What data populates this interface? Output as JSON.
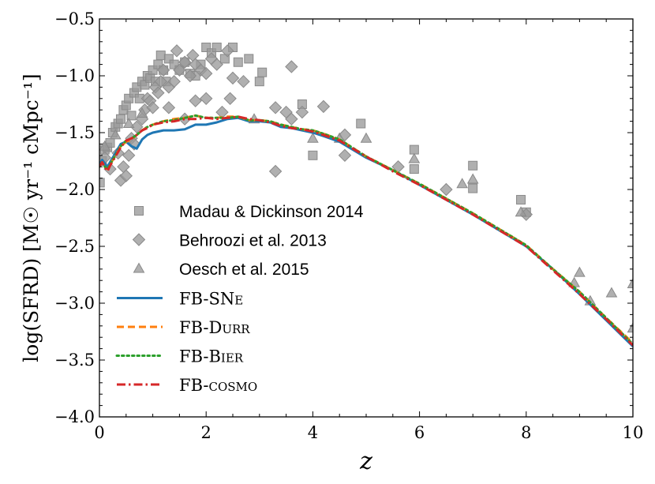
{
  "chart_data": {
    "type": "scatter",
    "xlabel": "z",
    "ylabel": "log(SFRD) [M☉ yr⁻¹ cMpc⁻¹]",
    "xlim": [
      0,
      10
    ],
    "ylim": [
      -4.0,
      -0.5
    ],
    "x_ticks": [
      0,
      2,
      4,
      6,
      8,
      10
    ],
    "y_ticks": [
      -4.0,
      -3.5,
      -3.0,
      -2.5,
      -2.0,
      -1.5,
      -1.0,
      -0.5
    ],
    "x_tick_labels": [
      "0",
      "2",
      "4",
      "6",
      "8",
      "10"
    ],
    "y_tick_labels": [
      "−4.0",
      "−3.5",
      "−3.0",
      "−2.5",
      "−2.0",
      "−1.5",
      "−1.0",
      "−0.5"
    ],
    "legend_position": "lower-left",
    "grid": false,
    "observations": [
      {
        "name": "Madau & Dickinson 2014",
        "marker": "square",
        "color": "#9a9a9a",
        "points": [
          [
            0.01,
            -1.94
          ],
          [
            0.05,
            -1.75
          ],
          [
            0.1,
            -1.65
          ],
          [
            0.15,
            -1.63
          ],
          [
            0.2,
            -1.59
          ],
          [
            0.25,
            -1.5
          ],
          [
            0.3,
            -1.45
          ],
          [
            0.35,
            -1.42
          ],
          [
            0.4,
            -1.38
          ],
          [
            0.45,
            -1.3
          ],
          [
            0.5,
            -1.26
          ],
          [
            0.55,
            -1.2
          ],
          [
            0.6,
            -1.35
          ],
          [
            0.65,
            -1.15
          ],
          [
            0.7,
            -1.1
          ],
          [
            0.75,
            -1.2
          ],
          [
            0.8,
            -1.05
          ],
          [
            0.85,
            -1.08
          ],
          [
            0.9,
            -1.0
          ],
          [
            0.95,
            -1.02
          ],
          [
            1.0,
            -0.95
          ],
          [
            1.05,
            -1.05
          ],
          [
            1.1,
            -0.9
          ],
          [
            1.15,
            -0.82
          ],
          [
            1.2,
            -0.95
          ],
          [
            1.25,
            -1.05
          ],
          [
            1.3,
            -0.85
          ],
          [
            1.4,
            -0.9
          ],
          [
            1.5,
            -0.95
          ],
          [
            1.6,
            -0.88
          ],
          [
            1.7,
            -0.98
          ],
          [
            1.8,
            -1.0
          ],
          [
            1.9,
            -0.9
          ],
          [
            2.0,
            -0.75
          ],
          [
            2.1,
            -0.8
          ],
          [
            2.2,
            -0.75
          ],
          [
            2.35,
            -0.85
          ],
          [
            2.5,
            -0.75
          ],
          [
            2.6,
            -0.88
          ],
          [
            2.8,
            -0.85
          ],
          [
            3.0,
            -1.05
          ],
          [
            3.05,
            -0.97
          ],
          [
            3.8,
            -1.25
          ],
          [
            4.0,
            -1.7
          ],
          [
            4.9,
            -1.42
          ],
          [
            5.9,
            -1.65
          ],
          [
            5.9,
            -1.82
          ],
          [
            7.0,
            -1.79
          ],
          [
            7.0,
            -1.99
          ],
          [
            7.9,
            -2.09
          ],
          [
            8.0,
            -2.2
          ]
        ]
      },
      {
        "name": "Behroozi et al. 2013",
        "marker": "diamond",
        "color": "#9a9a9a",
        "points": [
          [
            0.1,
            -1.72
          ],
          [
            0.2,
            -1.82
          ],
          [
            0.35,
            -1.68
          ],
          [
            0.4,
            -1.92
          ],
          [
            0.45,
            -1.8
          ],
          [
            0.5,
            -1.88
          ],
          [
            0.55,
            -1.7
          ],
          [
            0.6,
            -1.55
          ],
          [
            0.65,
            -1.6
          ],
          [
            0.7,
            -1.45
          ],
          [
            0.8,
            -1.38
          ],
          [
            0.85,
            -1.3
          ],
          [
            0.9,
            -1.2
          ],
          [
            0.95,
            -1.22
          ],
          [
            1.0,
            -1.28
          ],
          [
            1.05,
            -1.1
          ],
          [
            1.1,
            -1.15
          ],
          [
            1.15,
            -1.05
          ],
          [
            1.2,
            -0.95
          ],
          [
            1.3,
            -1.1
          ],
          [
            1.4,
            -1.05
          ],
          [
            1.45,
            -0.78
          ],
          [
            1.5,
            -0.95
          ],
          [
            1.6,
            -0.88
          ],
          [
            1.7,
            -1.0
          ],
          [
            1.75,
            -0.82
          ],
          [
            1.8,
            -0.9
          ],
          [
            1.9,
            -0.95
          ],
          [
            2.0,
            -0.98
          ],
          [
            2.1,
            -0.85
          ],
          [
            2.2,
            -0.9
          ],
          [
            2.4,
            -0.78
          ],
          [
            2.5,
            -1.02
          ],
          [
            2.7,
            -1.05
          ],
          [
            1.3,
            -1.28
          ],
          [
            1.6,
            -1.38
          ],
          [
            1.8,
            -1.22
          ],
          [
            2.0,
            -1.2
          ],
          [
            2.3,
            -1.32
          ],
          [
            2.45,
            -1.2
          ],
          [
            3.3,
            -1.28
          ],
          [
            3.5,
            -1.32
          ],
          [
            3.6,
            -0.92
          ],
          [
            3.8,
            -1.32
          ],
          [
            4.2,
            -1.27
          ],
          [
            3.3,
            -1.84
          ],
          [
            3.6,
            -1.38
          ],
          [
            4.6,
            -1.52
          ],
          [
            4.6,
            -1.7
          ],
          [
            5.6,
            -1.8
          ],
          [
            6.5,
            -2.0
          ],
          [
            8.0,
            -2.22
          ]
        ]
      },
      {
        "name": "Oesch et al. 2015",
        "marker": "triangle",
        "color": "#9a9a9a",
        "points": [
          [
            0.1,
            -1.62
          ],
          [
            0.3,
            -1.52
          ],
          [
            0.55,
            -1.42
          ],
          [
            0.8,
            -1.33
          ],
          [
            2.9,
            -1.38
          ],
          [
            4.0,
            -1.55
          ],
          [
            4.5,
            -1.55
          ],
          [
            5.0,
            -1.55
          ],
          [
            5.9,
            -1.73
          ],
          [
            6.8,
            -1.95
          ],
          [
            7.0,
            -1.91
          ],
          [
            7.9,
            -2.2
          ],
          [
            8.9,
            -2.82
          ],
          [
            9.0,
            -2.73
          ],
          [
            9.2,
            -2.98
          ],
          [
            9.6,
            -2.91
          ],
          [
            10.0,
            -2.83
          ],
          [
            10.0,
            -3.22
          ]
        ]
      }
    ],
    "series": [
      {
        "name": "FB-SNe",
        "label_main": "FB-SN",
        "label_smallcaps": "e",
        "color": "#1f77b4",
        "style": "solid",
        "x": [
          0.0,
          0.05,
          0.1,
          0.15,
          0.2,
          0.3,
          0.4,
          0.5,
          0.6,
          0.7,
          0.8,
          0.9,
          1.0,
          1.2,
          1.4,
          1.6,
          1.8,
          2.0,
          2.2,
          2.4,
          2.6,
          2.8,
          3.0,
          3.2,
          3.4,
          3.6,
          3.8,
          4.0,
          4.2,
          4.5,
          5.0,
          5.5,
          6.0,
          6.5,
          7.0,
          7.5,
          8.0,
          8.5,
          9.0,
          9.5,
          10.0
        ],
        "y": [
          -1.78,
          -1.74,
          -1.77,
          -1.8,
          -1.76,
          -1.68,
          -1.6,
          -1.58,
          -1.62,
          -1.64,
          -1.56,
          -1.52,
          -1.5,
          -1.48,
          -1.48,
          -1.47,
          -1.43,
          -1.43,
          -1.41,
          -1.38,
          -1.37,
          -1.4,
          -1.4,
          -1.41,
          -1.45,
          -1.46,
          -1.48,
          -1.5,
          -1.53,
          -1.58,
          -1.72,
          -1.83,
          -1.96,
          -2.09,
          -2.22,
          -2.36,
          -2.5,
          -2.7,
          -2.92,
          -3.15,
          -3.38
        ]
      },
      {
        "name": "FB-Durr",
        "label_main": "FB-D",
        "label_smallcaps": "urr",
        "color": "#ff7f0e",
        "style": "dashed",
        "x": [
          0.0,
          0.05,
          0.1,
          0.15,
          0.2,
          0.3,
          0.4,
          0.5,
          0.6,
          0.7,
          0.8,
          0.9,
          1.0,
          1.2,
          1.4,
          1.6,
          1.8,
          2.0,
          2.2,
          2.4,
          2.6,
          2.8,
          3.0,
          3.2,
          3.4,
          3.6,
          3.8,
          4.0,
          4.2,
          4.5,
          5.0,
          5.5,
          6.0,
          6.5,
          7.0,
          7.5,
          8.0,
          8.5,
          9.0,
          9.5,
          10.0
        ],
        "y": [
          -1.8,
          -1.76,
          -1.8,
          -1.82,
          -1.78,
          -1.7,
          -1.62,
          -1.58,
          -1.56,
          -1.52,
          -1.48,
          -1.45,
          -1.43,
          -1.4,
          -1.38,
          -1.37,
          -1.35,
          -1.37,
          -1.37,
          -1.36,
          -1.36,
          -1.39,
          -1.39,
          -1.4,
          -1.43,
          -1.45,
          -1.47,
          -1.48,
          -1.51,
          -1.56,
          -1.71,
          -1.83,
          -1.95,
          -2.08,
          -2.21,
          -2.35,
          -2.49,
          -2.7,
          -2.9,
          -3.13,
          -3.35
        ]
      },
      {
        "name": "FB-Bier",
        "label_main": "FB-B",
        "label_smallcaps": "ier",
        "color": "#2ca02c",
        "style": "dotted",
        "x": [
          0.0,
          0.05,
          0.1,
          0.15,
          0.2,
          0.3,
          0.4,
          0.5,
          0.6,
          0.7,
          0.8,
          0.9,
          1.0,
          1.2,
          1.4,
          1.6,
          1.8,
          2.0,
          2.2,
          2.4,
          2.6,
          2.8,
          3.0,
          3.2,
          3.4,
          3.6,
          3.8,
          4.0,
          4.2,
          4.5,
          5.0,
          5.5,
          6.0,
          6.5,
          7.0,
          7.5,
          8.0,
          8.5,
          9.0,
          9.5,
          10.0
        ],
        "y": [
          -1.8,
          -1.76,
          -1.8,
          -1.82,
          -1.78,
          -1.7,
          -1.62,
          -1.57,
          -1.55,
          -1.52,
          -1.48,
          -1.45,
          -1.43,
          -1.4,
          -1.39,
          -1.37,
          -1.35,
          -1.37,
          -1.37,
          -1.37,
          -1.36,
          -1.39,
          -1.39,
          -1.4,
          -1.43,
          -1.45,
          -1.47,
          -1.48,
          -1.51,
          -1.56,
          -1.71,
          -1.83,
          -1.95,
          -2.08,
          -2.21,
          -2.35,
          -2.49,
          -2.7,
          -2.9,
          -3.13,
          -3.36
        ]
      },
      {
        "name": "FB-cosmo",
        "label_main": "FB-",
        "label_smallcaps": "cosmo",
        "color": "#d62728",
        "style": "dashdot",
        "x": [
          0.0,
          0.05,
          0.1,
          0.15,
          0.2,
          0.3,
          0.4,
          0.5,
          0.6,
          0.7,
          0.8,
          0.9,
          1.0,
          1.2,
          1.4,
          1.6,
          1.8,
          2.0,
          2.2,
          2.4,
          2.6,
          2.8,
          3.0,
          3.2,
          3.4,
          3.6,
          3.8,
          4.0,
          4.2,
          4.5,
          5.0,
          5.5,
          6.0,
          6.5,
          7.0,
          7.5,
          8.0,
          8.5,
          9.0,
          9.5,
          10.0
        ],
        "y": [
          -1.8,
          -1.76,
          -1.8,
          -1.84,
          -1.79,
          -1.71,
          -1.63,
          -1.57,
          -1.55,
          -1.52,
          -1.48,
          -1.46,
          -1.43,
          -1.41,
          -1.4,
          -1.38,
          -1.38,
          -1.37,
          -1.38,
          -1.37,
          -1.36,
          -1.38,
          -1.39,
          -1.41,
          -1.44,
          -1.46,
          -1.47,
          -1.49,
          -1.52,
          -1.57,
          -1.71,
          -1.84,
          -1.96,
          -2.09,
          -2.22,
          -2.36,
          -2.5,
          -2.71,
          -2.92,
          -3.14,
          -3.37
        ]
      }
    ]
  }
}
